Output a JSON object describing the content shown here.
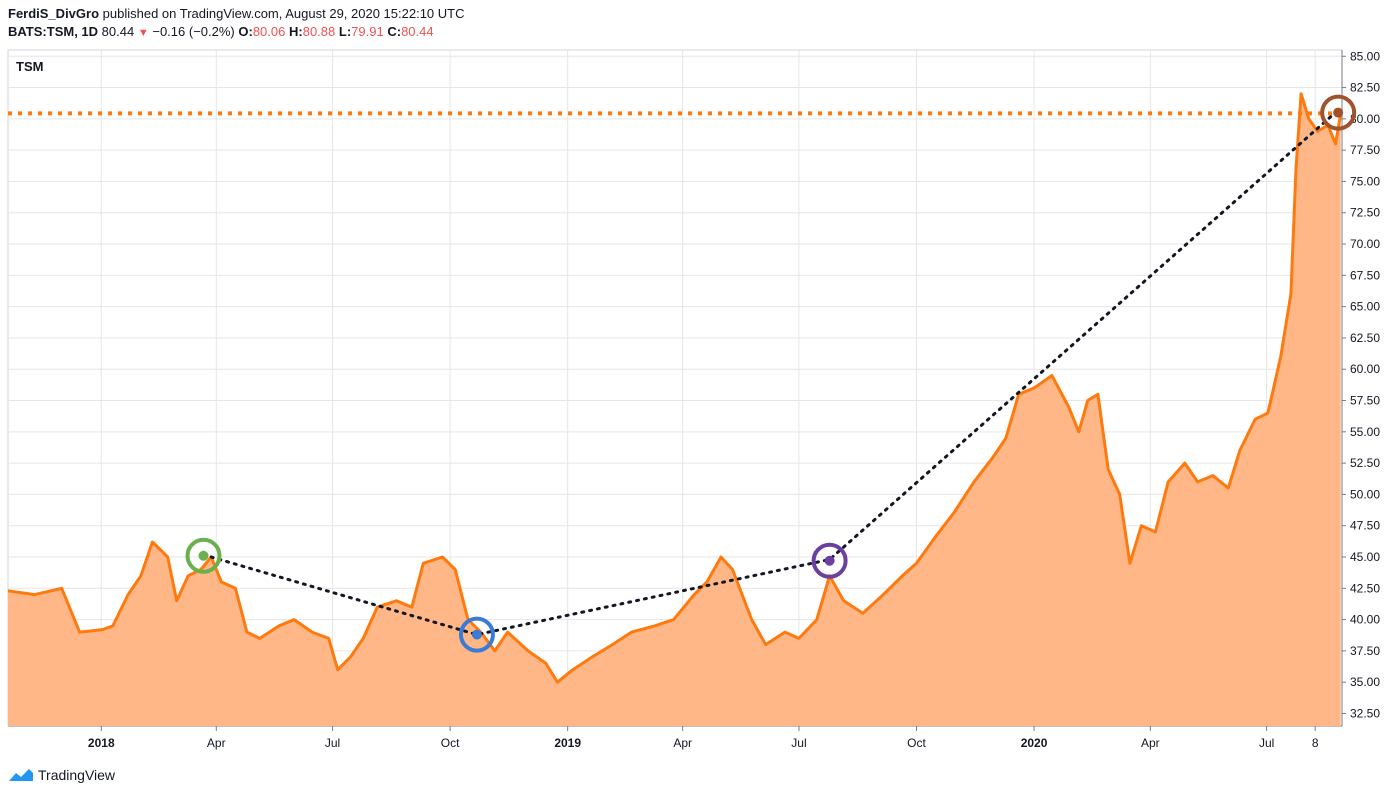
{
  "header": {
    "author": "FerdiS_DivGro",
    "published_text": "published on TradingView.com, August 29, 2020 15:22:10 UTC",
    "symbol": "BATS:TSM, 1D",
    "last": "80.44",
    "change": "−0.16 (−0.2%)",
    "o_label": "O:",
    "o_value": "80.06",
    "h_label": "H:",
    "h_value": "80.88",
    "l_label": "L:",
    "l_value": "79.91",
    "c_label": "C:",
    "c_value": "80.44"
  },
  "brand": {
    "name": "TradingView"
  },
  "colors": {
    "line": "#ff7a0e",
    "fill": "#ffb787",
    "grid": "#e6e6e6",
    "hline": "#ff7a0e",
    "green": "#6ab04c",
    "blue": "#3a7bd5",
    "purple": "#6b3fa0",
    "brown": "#a0522d"
  },
  "chart_data": {
    "type": "area",
    "title": "TSM",
    "x_ticks": [
      "2018",
      "Apr",
      "Jul",
      "Oct",
      "2019",
      "Apr",
      "Jul",
      "Oct",
      "2020",
      "Apr",
      "Jul",
      "8"
    ],
    "y_ticks": [
      "85.00",
      "82.50",
      "80.00",
      "77.50",
      "75.00",
      "72.50",
      "70.00",
      "67.50",
      "65.00",
      "62.50",
      "60.00",
      "57.50",
      "55.00",
      "52.50",
      "50.00",
      "47.50",
      "45.00",
      "42.50",
      "40.00",
      "37.50",
      "35.00",
      "32.50"
    ],
    "ylim": [
      31.5,
      85.5
    ],
    "xlim": [
      "2017-10-20",
      "2020-08-29"
    ],
    "series": [
      {
        "values": [
          [
            "2017-10-20",
            42.3
          ],
          [
            "2017-11-10",
            42.0
          ],
          [
            "2017-12-01",
            42.5
          ],
          [
            "2017-12-15",
            39.0
          ],
          [
            "2018-01-02",
            39.2
          ],
          [
            "2018-01-10",
            39.5
          ],
          [
            "2018-01-22",
            42.0
          ],
          [
            "2018-02-01",
            43.5
          ],
          [
            "2018-02-10",
            46.2
          ],
          [
            "2018-02-22",
            45.0
          ],
          [
            "2018-03-01",
            41.5
          ],
          [
            "2018-03-10",
            43.5
          ],
          [
            "2018-03-20",
            44.0
          ],
          [
            "2018-03-28",
            45.0
          ],
          [
            "2018-04-05",
            43.0
          ],
          [
            "2018-04-16",
            42.5
          ],
          [
            "2018-04-25",
            39.0
          ],
          [
            "2018-05-05",
            38.5
          ],
          [
            "2018-05-20",
            39.5
          ],
          [
            "2018-06-01",
            40.0
          ],
          [
            "2018-06-15",
            39.0
          ],
          [
            "2018-06-28",
            38.5
          ],
          [
            "2018-07-05",
            36.0
          ],
          [
            "2018-07-15",
            37.0
          ],
          [
            "2018-07-25",
            38.5
          ],
          [
            "2018-08-05",
            41.0
          ],
          [
            "2018-08-20",
            41.5
          ],
          [
            "2018-09-01",
            41.0
          ],
          [
            "2018-09-10",
            44.5
          ],
          [
            "2018-09-25",
            45.0
          ],
          [
            "2018-10-05",
            44.0
          ],
          [
            "2018-10-15",
            40.0
          ],
          [
            "2018-10-25",
            39.0
          ],
          [
            "2018-11-05",
            37.5
          ],
          [
            "2018-11-15",
            39.0
          ],
          [
            "2018-12-01",
            37.5
          ],
          [
            "2018-12-15",
            36.5
          ],
          [
            "2018-12-24",
            35.0
          ],
          [
            "2019-01-05",
            36.0
          ],
          [
            "2019-01-20",
            37.0
          ],
          [
            "2019-02-05",
            38.0
          ],
          [
            "2019-02-20",
            39.0
          ],
          [
            "2019-03-10",
            39.5
          ],
          [
            "2019-03-25",
            40.0
          ],
          [
            "2019-04-10",
            42.0
          ],
          [
            "2019-04-20",
            43.0
          ],
          [
            "2019-05-01",
            45.0
          ],
          [
            "2019-05-10",
            44.0
          ],
          [
            "2019-05-25",
            40.0
          ],
          [
            "2019-06-05",
            38.0
          ],
          [
            "2019-06-20",
            39.0
          ],
          [
            "2019-07-01",
            38.5
          ],
          [
            "2019-07-15",
            40.0
          ],
          [
            "2019-07-25",
            43.5
          ],
          [
            "2019-08-05",
            41.5
          ],
          [
            "2019-08-20",
            40.5
          ],
          [
            "2019-09-05",
            42.0
          ],
          [
            "2019-09-20",
            43.5
          ],
          [
            "2019-10-01",
            44.5
          ],
          [
            "2019-10-15",
            46.5
          ],
          [
            "2019-10-30",
            48.5
          ],
          [
            "2019-11-15",
            51.0
          ],
          [
            "2019-11-30",
            53.0
          ],
          [
            "2019-12-10",
            54.5
          ],
          [
            "2019-12-20",
            58.0
          ],
          [
            "2020-01-01",
            58.5
          ],
          [
            "2020-01-15",
            59.5
          ],
          [
            "2020-01-28",
            57.0
          ],
          [
            "2020-02-05",
            55.0
          ],
          [
            "2020-02-12",
            57.5
          ],
          [
            "2020-02-20",
            58.0
          ],
          [
            "2020-02-28",
            52.0
          ],
          [
            "2020-03-08",
            50.0
          ],
          [
            "2020-03-16",
            44.5
          ],
          [
            "2020-03-25",
            47.5
          ],
          [
            "2020-04-05",
            47.0
          ],
          [
            "2020-04-15",
            51.0
          ],
          [
            "2020-04-28",
            52.5
          ],
          [
            "2020-05-08",
            51.0
          ],
          [
            "2020-05-20",
            51.5
          ],
          [
            "2020-06-01",
            50.5
          ],
          [
            "2020-06-10",
            53.5
          ],
          [
            "2020-06-22",
            56.0
          ],
          [
            "2020-07-02",
            56.5
          ],
          [
            "2020-07-12",
            61.0
          ],
          [
            "2020-07-20",
            66.0
          ],
          [
            "2020-07-24",
            76.0
          ],
          [
            "2020-07-28",
            82.0
          ],
          [
            "2020-08-03",
            80.0
          ],
          [
            "2020-08-10",
            79.0
          ],
          [
            "2020-08-18",
            79.5
          ],
          [
            "2020-08-24",
            78.0
          ],
          [
            "2020-08-28",
            80.44
          ]
        ]
      }
    ],
    "price_line": 80.44,
    "trend_line": [
      [
        "2018-03-28",
        45.0
      ],
      [
        "2018-10-22",
        38.8
      ],
      [
        "2019-07-25",
        44.8
      ],
      [
        "2020-08-26",
        80.7
      ]
    ],
    "markers": [
      {
        "date": "2018-03-22",
        "value": 45.1,
        "color_key": "green"
      },
      {
        "date": "2018-10-22",
        "value": 38.8,
        "color_key": "blue"
      },
      {
        "date": "2019-07-25",
        "value": 44.7,
        "color_key": "purple"
      },
      {
        "date": "2020-08-26",
        "value": 80.5,
        "color_key": "brown"
      }
    ]
  }
}
